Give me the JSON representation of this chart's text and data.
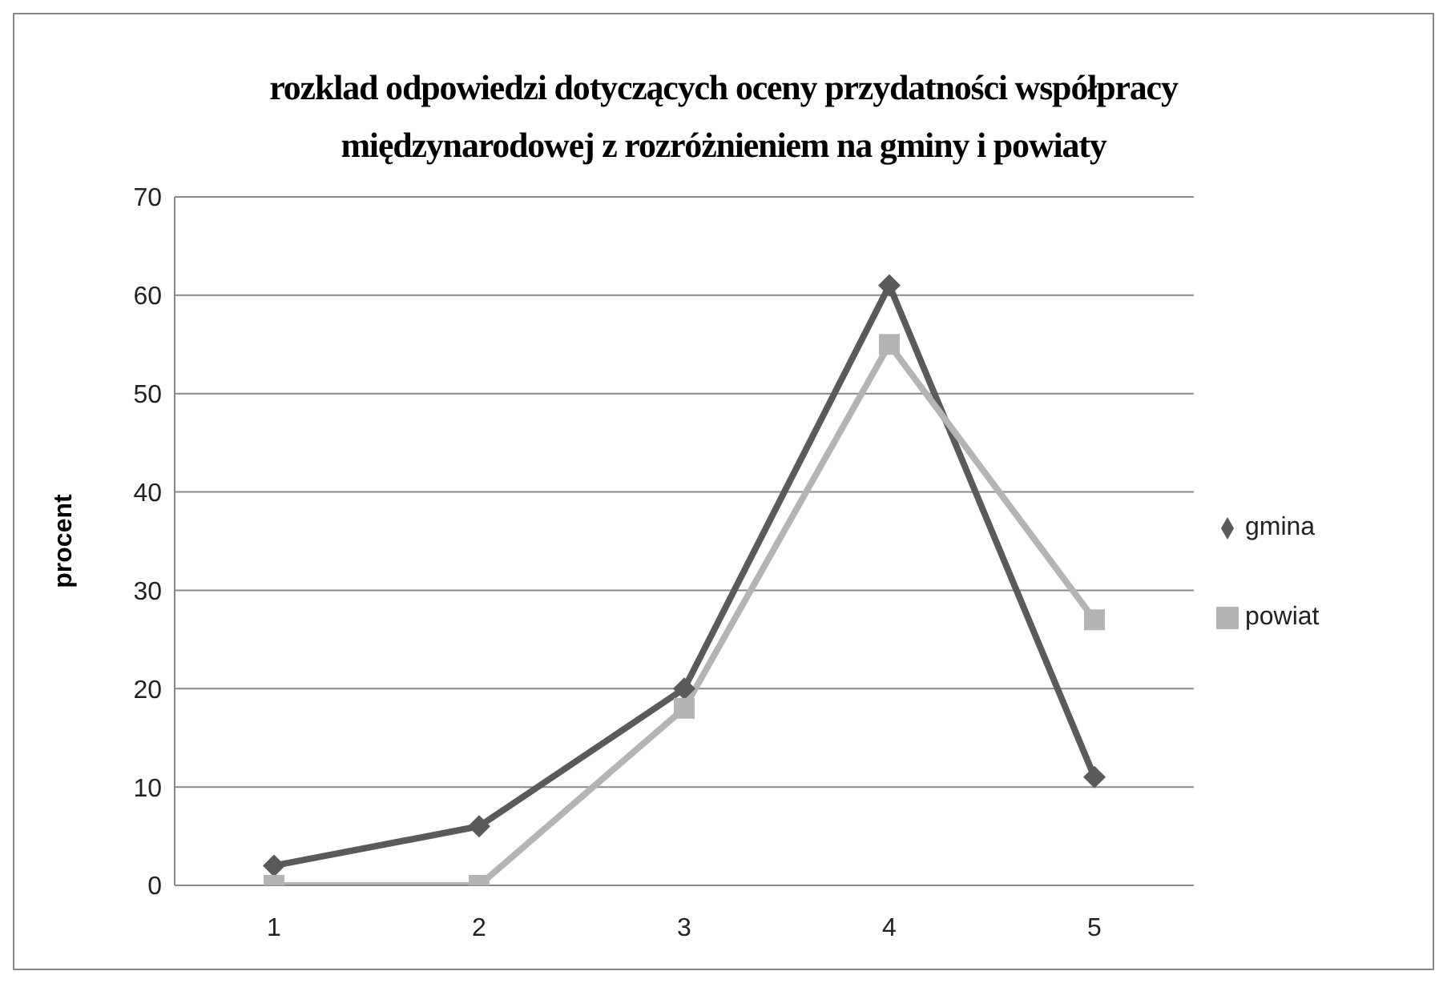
{
  "chart_data": {
    "type": "line",
    "title": "rozklad odpowiedzi dotyczących oceny przydatności współpracy międzynarodowej z rozróżnieniem na gminy i powiaty",
    "ylabel": "procent",
    "categories": [
      "1",
      "2",
      "3",
      "4",
      "5"
    ],
    "series": [
      {
        "name": "gmina",
        "color": "#5a5a5a",
        "marker": "diamond",
        "values": [
          2,
          6,
          20,
          61,
          11
        ]
      },
      {
        "name": "powiat",
        "color": "#b4b4b4",
        "marker": "square",
        "values": [
          0,
          0,
          18,
          55,
          27
        ]
      }
    ],
    "ylim": [
      0,
      70
    ],
    "yticks": [
      0,
      10,
      20,
      30,
      40,
      50,
      60,
      70
    ],
    "grid": "y",
    "legend": "right"
  }
}
